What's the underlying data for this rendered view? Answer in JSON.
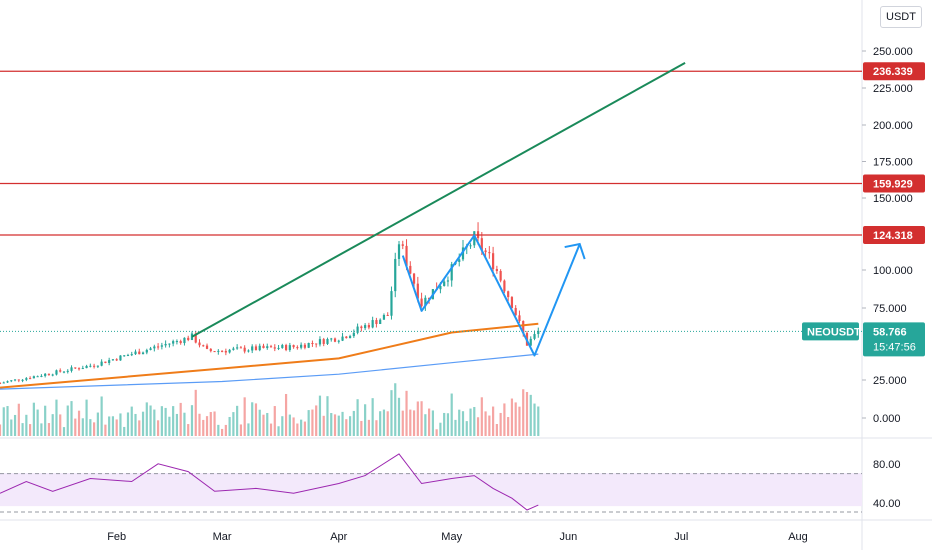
{
  "symbol": "NEOUSDT",
  "currency_button": "USDT",
  "price_badge": {
    "value": "58.766",
    "countdown": "15:47:56",
    "color": "#26a69a"
  },
  "chart_data": [
    {
      "type": "candlestick",
      "series": [
        {
          "name": "price",
          "monthly_anchors": [
            {
              "date": "2021-01-01",
              "close": 23
            },
            {
              "date": "2021-01-25",
              "close": 35
            },
            {
              "date": "2021-02-21",
              "close": 55
            },
            {
              "date": "2021-02-25",
              "close": 45
            },
            {
              "date": "2021-03-20",
              "close": 48
            },
            {
              "date": "2021-04-02",
              "close": 55
            },
            {
              "date": "2021-04-14",
              "close": 70
            },
            {
              "date": "2021-04-17",
              "close": 120
            },
            {
              "date": "2021-04-23",
              "close": 78
            },
            {
              "date": "2021-05-01",
              "close": 100
            },
            {
              "date": "2021-05-07",
              "close": 122
            },
            {
              "date": "2021-05-12",
              "close": 105
            },
            {
              "date": "2021-05-17",
              "close": 78
            },
            {
              "date": "2021-05-21",
              "close": 50
            },
            {
              "date": "2021-05-24",
              "close": 58.766
            }
          ]
        },
        {
          "name": "moving-average-slow",
          "color": "#ef7c19",
          "points": [
            {
              "date": "2021-01-01",
              "value": 20
            },
            {
              "date": "2021-03-01",
              "value": 33
            },
            {
              "date": "2021-04-01",
              "value": 40
            },
            {
              "date": "2021-05-01",
              "value": 58
            },
            {
              "date": "2021-05-24",
              "value": 64
            }
          ]
        },
        {
          "name": "moving-average-long",
          "color": "#5b9cf6",
          "points": [
            {
              "date": "2021-01-01",
              "value": 19
            },
            {
              "date": "2021-03-01",
              "value": 24
            },
            {
              "date": "2021-04-01",
              "value": 29
            },
            {
              "date": "2021-05-01",
              "value": 37
            },
            {
              "date": "2021-05-24",
              "value": 43
            }
          ]
        }
      ],
      "horizontal_levels": [
        {
          "value": 236.339,
          "label": "236.339",
          "color": "#d32f2f"
        },
        {
          "value": 159.929,
          "label": "159.929",
          "color": "#d32f2f"
        },
        {
          "value": 124.318,
          "label": "124.318",
          "color": "#d32f2f"
        }
      ],
      "trendline": {
        "color": "#1a8a5a",
        "from": {
          "date": "2021-02-21",
          "value": 55
        },
        "to": {
          "date": "2021-07-02",
          "value": 242
        }
      },
      "projection": {
        "color": "#2196f3",
        "points": [
          {
            "date": "2021-04-18",
            "value": 110
          },
          {
            "date": "2021-04-23",
            "value": 73
          },
          {
            "date": "2021-05-07",
            "value": 124
          },
          {
            "date": "2021-05-23",
            "value": 42
          },
          {
            "date": "2021-06-04",
            "value": 118
          }
        ]
      },
      "y_axis": {
        "scale": "log",
        "ticks": [
          "250.000",
          "225.000",
          "200.000",
          "175.000",
          "150.000",
          "100.000",
          "75.000",
          "25.000",
          "0.000"
        ]
      },
      "x_axis": {
        "ticks": [
          "Feb",
          "Mar",
          "Apr",
          "May",
          "Jun",
          "Jul",
          "Aug"
        ]
      },
      "current_price_line": 58.766,
      "volume": "shown"
    },
    {
      "type": "line",
      "name": "rsi",
      "color": "#9c27b0",
      "band": [
        40,
        70
      ],
      "y_axis": {
        "ticks": [
          "80.00",
          "40.00"
        ]
      },
      "points": [
        {
          "date": "2021-01-01",
          "value": 50
        },
        {
          "date": "2021-01-08",
          "value": 62
        },
        {
          "date": "2021-01-15",
          "value": 52
        },
        {
          "date": "2021-01-25",
          "value": 65
        },
        {
          "date": "2021-02-05",
          "value": 62
        },
        {
          "date": "2021-02-12",
          "value": 80
        },
        {
          "date": "2021-02-20",
          "value": 72
        },
        {
          "date": "2021-02-27",
          "value": 52
        },
        {
          "date": "2021-03-10",
          "value": 55
        },
        {
          "date": "2021-03-20",
          "value": 50
        },
        {
          "date": "2021-04-01",
          "value": 60
        },
        {
          "date": "2021-04-08",
          "value": 68
        },
        {
          "date": "2021-04-17",
          "value": 90
        },
        {
          "date": "2021-04-23",
          "value": 60
        },
        {
          "date": "2021-05-01",
          "value": 65
        },
        {
          "date": "2021-05-07",
          "value": 68
        },
        {
          "date": "2021-05-12",
          "value": 55
        },
        {
          "date": "2021-05-17",
          "value": 45
        },
        {
          "date": "2021-05-21",
          "value": 33
        },
        {
          "date": "2021-05-24",
          "value": 38
        }
      ]
    }
  ]
}
